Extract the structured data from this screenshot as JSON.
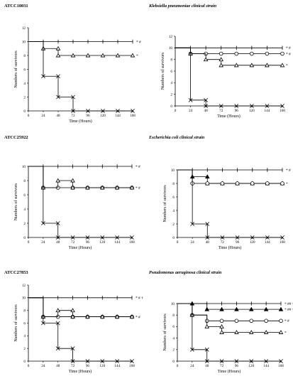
{
  "chart_data": [
    {
      "type": "line",
      "title": "ATCC10031",
      "xlabel": "Time (Hours)",
      "ylabel": "Numbers of survivors",
      "x": [
        0,
        24,
        48,
        72,
        96,
        120,
        144,
        168
      ],
      "xlim": [
        0,
        168
      ],
      "ylim": [
        0,
        12
      ],
      "yticks": [
        0,
        2,
        4,
        6,
        8,
        10,
        12
      ],
      "series": [
        {
          "marker": "plus",
          "values": [
            10,
            10,
            10,
            10,
            10,
            10,
            10,
            10
          ],
          "annotation": "* #"
        },
        {
          "marker": "triangle",
          "values": [
            10,
            9,
            8,
            8,
            8,
            8,
            8,
            8
          ],
          "annotation": "*"
        },
        {
          "marker": "x",
          "values": [
            10,
            5,
            2,
            0,
            0,
            0,
            0,
            0
          ],
          "annotation": ""
        }
      ],
      "extra_points": [
        {
          "marker": "triangle",
          "x": 48,
          "y": 9
        },
        {
          "marker": "x",
          "x": 48,
          "y": 5
        },
        {
          "marker": "x",
          "x": 72,
          "y": 2
        }
      ],
      "grid": false
    },
    {
      "type": "line",
      "title": "Klebsiella pneumoniae clinical strain",
      "xlabel": "Time (Hours)",
      "ylabel": "Numbers of survivors",
      "x": [
        0,
        24,
        48,
        72,
        96,
        120,
        144,
        168
      ],
      "xlim": [
        0,
        168
      ],
      "ylim": [
        0,
        12
      ],
      "yticks": [
        0,
        2,
        4,
        6,
        8,
        10,
        12
      ],
      "series": [
        {
          "marker": "plus",
          "values": [
            10,
            10,
            10,
            10,
            10,
            10,
            10,
            10
          ],
          "annotation": "* #"
        },
        {
          "marker": "circle",
          "values": [
            10,
            9,
            9,
            9,
            9,
            9,
            9,
            9
          ],
          "annotation": "* #"
        },
        {
          "marker": "triangle",
          "values": [
            10,
            9,
            8,
            7,
            7,
            7,
            7,
            7
          ],
          "annotation": "*"
        },
        {
          "marker": "x",
          "values": [
            10,
            1,
            0,
            0,
            0,
            0,
            0,
            0
          ],
          "annotation": ""
        }
      ],
      "extra_points": [
        {
          "marker": "x",
          "x": 48,
          "y": 1
        },
        {
          "marker": "triangle",
          "x": 72,
          "y": 8
        }
      ],
      "grid": false
    },
    {
      "type": "line",
      "title": "ATCC25922",
      "xlabel": "Time (Hours)",
      "ylabel": "Numbers of survivors",
      "x": [
        0,
        24,
        48,
        72,
        96,
        120,
        144,
        168
      ],
      "xlim": [
        0,
        168
      ],
      "ylim": [
        0,
        10
      ],
      "yticks": [
        0,
        2,
        4,
        6,
        8,
        10
      ],
      "series": [
        {
          "marker": "plus",
          "values": [
            10,
            10,
            10,
            10,
            10,
            10,
            10,
            10
          ],
          "annotation": "* #"
        },
        {
          "marker": "circle",
          "values": [
            10,
            7,
            7,
            7,
            7,
            7,
            7,
            7
          ],
          "annotation": "* #"
        },
        {
          "marker": "triangle",
          "values": [
            10,
            7,
            8,
            7,
            7,
            7,
            7,
            7
          ],
          "annotation": ""
        },
        {
          "marker": "x",
          "values": [
            10,
            2,
            0,
            0,
            0,
            0,
            0,
            0
          ],
          "annotation": ""
        }
      ],
      "extra_points": [
        {
          "marker": "x",
          "x": 48,
          "y": 2
        },
        {
          "marker": "triangle",
          "x": 72,
          "y": 8
        }
      ],
      "grid": false
    },
    {
      "type": "line",
      "title": "Escherichia coli clinical strain",
      "xlabel": "Time (Hours)",
      "ylabel": "Numbers of survivors",
      "x": [
        0,
        24,
        48,
        72,
        96,
        120,
        144,
        168
      ],
      "xlim": [
        0,
        168
      ],
      "ylim": [
        0,
        10
      ],
      "yticks": [
        0,
        2,
        4,
        6,
        8,
        10
      ],
      "series": [
        {
          "marker": "plus",
          "values": [
            10,
            10,
            10,
            10,
            10,
            10,
            10,
            10
          ],
          "annotation": "* #"
        },
        {
          "marker": "triangle-filled",
          "values": [
            10,
            9,
            8,
            8,
            8,
            8,
            8,
            8
          ],
          "annotation": ""
        },
        {
          "marker": "circle",
          "values": [
            10,
            8,
            8,
            8,
            8,
            8,
            8,
            8
          ],
          "annotation": "*"
        },
        {
          "marker": "x",
          "values": [
            10,
            2,
            0,
            0,
            0,
            0,
            0,
            0
          ],
          "annotation": ""
        }
      ],
      "extra_points": [
        {
          "marker": "triangle-filled",
          "x": 48,
          "y": 9
        },
        {
          "marker": "x",
          "x": 48,
          "y": 2
        }
      ],
      "grid": false
    },
    {
      "type": "line",
      "title": "ATCC27853",
      "xlabel": "Time (Hours)",
      "ylabel": "Numbers of survivors",
      "x": [
        0,
        24,
        48,
        72,
        96,
        120,
        144,
        168
      ],
      "xlim": [
        0,
        168
      ],
      "ylim": [
        0,
        12
      ],
      "yticks": [
        0,
        2,
        4,
        6,
        8,
        10,
        12
      ],
      "series": [
        {
          "marker": "plus",
          "values": [
            10,
            10,
            10,
            10,
            10,
            10,
            10,
            10
          ],
          "annotation": "* # †"
        },
        {
          "marker": "circle",
          "values": [
            10,
            7,
            7,
            7,
            7,
            7,
            7,
            7
          ],
          "annotation": "* #"
        },
        {
          "marker": "triangle",
          "values": [
            10,
            7,
            8,
            7,
            7,
            7,
            7,
            7
          ],
          "annotation": ""
        },
        {
          "marker": "x",
          "values": [
            10,
            6,
            2,
            0,
            0,
            0,
            0,
            0
          ],
          "annotation": ""
        }
      ],
      "extra_points": [
        {
          "marker": "x",
          "x": 48,
          "y": 6
        },
        {
          "marker": "x",
          "x": 72,
          "y": 2
        },
        {
          "marker": "triangle",
          "x": 72,
          "y": 8
        }
      ],
      "grid": false
    },
    {
      "type": "line",
      "title": "Pseudomonas aeruginosa clinical strain",
      "xlabel": "Time (Hours)",
      "ylabel": "Numbers of survivors",
      "x": [
        0,
        24,
        48,
        72,
        96,
        120,
        144,
        168
      ],
      "xlim": [
        0,
        168
      ],
      "ylim": [
        0,
        10
      ],
      "yticks": [
        0,
        2,
        4,
        6,
        8,
        10
      ],
      "series": [
        {
          "marker": "plus",
          "values": [
            10,
            10,
            10,
            10,
            10,
            10,
            10,
            10
          ],
          "annotation": "* ## †"
        },
        {
          "marker": "triangle-filled",
          "values": [
            10,
            10,
            9,
            9,
            9,
            9,
            9,
            9
          ],
          "annotation": "* ## †"
        },
        {
          "marker": "circle",
          "values": [
            10,
            8,
            7,
            7,
            7,
            7,
            7,
            7
          ],
          "annotation": "* #"
        },
        {
          "marker": "triangle",
          "values": [
            10,
            8,
            6,
            5,
            5,
            5,
            5,
            5
          ],
          "annotation": "*"
        },
        {
          "marker": "x",
          "values": [
            10,
            2,
            0,
            0,
            0,
            0,
            0,
            0
          ],
          "annotation": ""
        }
      ],
      "extra_points": [
        {
          "marker": "x",
          "x": 48,
          "y": 2
        },
        {
          "marker": "triangle",
          "x": 72,
          "y": 6
        }
      ],
      "grid": false
    }
  ]
}
